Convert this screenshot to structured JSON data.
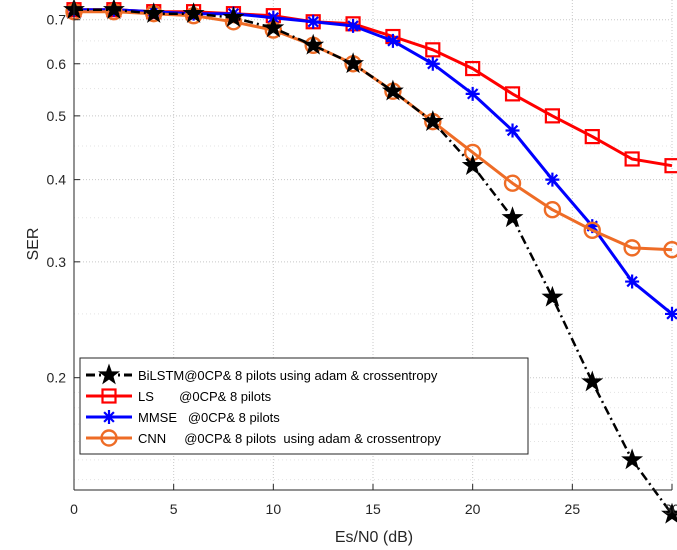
{
  "chart_data": {
    "type": "line",
    "xlabel": "Es/N0 (dB)",
    "ylabel": "SER",
    "xlim": [
      0,
      30
    ],
    "ylim": [
      0.135,
      0.75
    ],
    "yscale": "log",
    "grid": true,
    "grid_style": "dotted",
    "legend_placement": "lower-left",
    "x": [
      0,
      2,
      4,
      6,
      8,
      10,
      12,
      14,
      16,
      18,
      20,
      22,
      24,
      26,
      28,
      30
    ],
    "xticks": [
      "0",
      "5",
      "10",
      "15",
      "20",
      "25",
      "30"
    ],
    "yticks": [
      "0.2",
      "0.3",
      "0.4",
      "0.5",
      "0.6",
      "0.7"
    ],
    "series": [
      {
        "name": "BiLSTM@0CP& 8 pilots using adam & crossentropy",
        "color": "#000000",
        "line": "dashdot",
        "marker": "star",
        "values": [
          0.725,
          0.725,
          0.715,
          0.715,
          0.705,
          0.68,
          0.64,
          0.6,
          0.545,
          0.49,
          0.42,
          0.35,
          0.265,
          0.197,
          0.15,
          0.124
        ]
      },
      {
        "name": "LS       @0CP& 8 pilots",
        "color": "#ff0000",
        "line": "solid",
        "marker": "square",
        "values": [
          0.725,
          0.725,
          0.72,
          0.72,
          0.715,
          0.71,
          0.695,
          0.69,
          0.66,
          0.63,
          0.59,
          0.54,
          0.5,
          0.465,
          0.43,
          0.42
        ]
      },
      {
        "name": "MMSE   @0CP& 8 pilots",
        "color": "#0000ff",
        "line": "solid",
        "marker": "asterisk",
        "values": [
          0.725,
          0.725,
          0.72,
          0.715,
          0.715,
          0.705,
          0.695,
          0.685,
          0.65,
          0.6,
          0.54,
          0.475,
          0.4,
          0.34,
          0.28,
          0.25
        ]
      },
      {
        "name": "CNN     @0CP& 8 pilots  using adam & crossentropy",
        "color": "#ee6c26",
        "line": "solid",
        "marker": "circle",
        "values": [
          0.72,
          0.72,
          0.715,
          0.71,
          0.695,
          0.675,
          0.64,
          0.6,
          0.545,
          0.49,
          0.44,
          0.395,
          0.36,
          0.335,
          0.315,
          0.313
        ]
      }
    ]
  }
}
